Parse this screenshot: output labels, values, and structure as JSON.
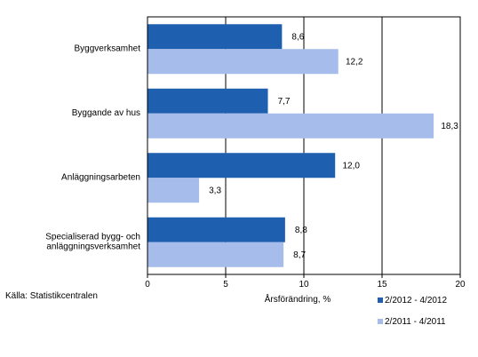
{
  "chart_data": {
    "type": "bar",
    "orientation": "horizontal",
    "categories": [
      [
        "Byggverksamhet"
      ],
      [
        "Byggande av hus"
      ],
      [
        "Anläggningsarbeten"
      ],
      [
        "Specialiserad bygg- och",
        "anläggningsverksamhet"
      ]
    ],
    "series": [
      {
        "name": "2/2012 - 4/2012",
        "color": "#1f5fb0",
        "values": [
          8.6,
          7.7,
          12.0,
          8.8
        ],
        "labels": [
          "8,6",
          "7,7",
          "12,0",
          "8,8"
        ]
      },
      {
        "name": "2/2011 - 4/2011",
        "color": "#a6bcea",
        "values": [
          12.2,
          18.3,
          3.3,
          8.7
        ],
        "labels": [
          "12,2",
          "18,3",
          "3,3",
          "8,7"
        ]
      }
    ],
    "xlabel": "Årsförändring, %",
    "xlim": [
      0,
      20
    ],
    "xticks": [
      0,
      5,
      10,
      15,
      20
    ],
    "gridlines": "vertical",
    "legend_position": "bottom-right",
    "source": "Källa: Statistikcentralen"
  }
}
